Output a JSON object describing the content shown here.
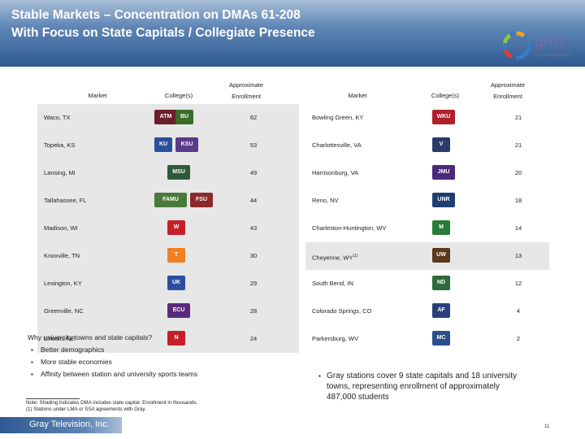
{
  "header": {
    "title_line1": "Stable Markets – Concentration on DMAs 61-208",
    "title_line2": "With Focus on State Capitals / Collegiate Presence"
  },
  "logo": {
    "text": "gray",
    "tagline": "Gray Television, Inc."
  },
  "table": {
    "headers": {
      "market": "Market",
      "colleges": "College(s)",
      "enrollment_line1": "Approximate",
      "enrollment_line2": "Enrollment"
    },
    "left_rows": [
      {
        "market": "Waco, TX",
        "enrollment": "62",
        "mascots": [
          {
            "label": "ATM",
            "color": "#6b1f2a"
          },
          {
            "label": "BU",
            "color": "#3b6b2a"
          }
        ]
      },
      {
        "market": "Topeka, KS",
        "enrollment": "53",
        "mascots": [
          {
            "label": "KU",
            "color": "#2a4f9a"
          },
          {
            "label": "KSU",
            "color": "#5a3a8a"
          }
        ]
      },
      {
        "market": "Lansing, MI",
        "enrollment": "49",
        "mascots": [
          {
            "label": "MSU",
            "color": "#2f5a3a"
          }
        ]
      },
      {
        "market": "Tallahassee, FL",
        "enrollment": "44",
        "mascots": [
          {
            "label": "FAMU",
            "color": "#4a7a3a"
          },
          {
            "label": "FSU",
            "color": "#8a2a2a"
          }
        ]
      },
      {
        "market": "Madison, WI",
        "enrollment": "43",
        "mascots": [
          {
            "label": "W",
            "color": "#c5202a"
          }
        ]
      },
      {
        "market": "Knoxville, TN",
        "enrollment": "30",
        "mascots": [
          {
            "label": "T",
            "color": "#f08020"
          }
        ]
      },
      {
        "market": "Lexington, KY",
        "enrollment": "29",
        "mascots": [
          {
            "label": "UK",
            "color": "#2a4fa0"
          }
        ]
      },
      {
        "market": "Greenville, NC",
        "enrollment": "28",
        "mascots": [
          {
            "label": "ECU",
            "color": "#5a2a7a"
          }
        ]
      },
      {
        "market": "Lincoln, NE",
        "enrollment": "24",
        "mascots": [
          {
            "label": "N",
            "color": "#c5202a"
          }
        ]
      }
    ],
    "right_rows": [
      {
        "market": "Bowling Green, KY",
        "enrollment": "21",
        "mascots": [
          {
            "label": "WKU",
            "color": "#b0202a"
          }
        ]
      },
      {
        "market": "Charlottesville, VA",
        "enrollment": "21",
        "mascots": [
          {
            "label": "V",
            "color": "#2a3a6a"
          }
        ]
      },
      {
        "market": "Harrisonburg, VA",
        "enrollment": "20",
        "mascots": [
          {
            "label": "JMU",
            "color": "#4a2a7a"
          }
        ]
      },
      {
        "market": "Reno, NV",
        "enrollment": "18",
        "mascots": [
          {
            "label": "UNR",
            "color": "#1f3f6f"
          }
        ]
      },
      {
        "market": "Charleston-Huntington, WV",
        "enrollment": "14",
        "mascots": [
          {
            "label": "M",
            "color": "#2a7a3a"
          }
        ]
      },
      {
        "market": "Cheyenne, WY",
        "market_sup": "(1)",
        "enrollment": "13",
        "mascots": [
          {
            "label": "UW",
            "color": "#5a3a1a"
          }
        ]
      },
      {
        "market": "South Bend, IN",
        "enrollment": "12",
        "mascots": [
          {
            "label": "ND",
            "color": "#2f6a3a"
          }
        ]
      },
      {
        "market": "Colorado Springs, CO",
        "enrollment": "4",
        "mascots": [
          {
            "label": "AF",
            "color": "#2a3f7a"
          }
        ]
      },
      {
        "market": "Parkersburg, WV",
        "enrollment": "2",
        "mascots": [
          {
            "label": "MC",
            "color": "#2a4f8a"
          }
        ]
      }
    ]
  },
  "why": {
    "heading": "Why university towns and state capitals?",
    "bullets": [
      "Better demographics",
      "More stable economies",
      "Affinity between station and university sports teams"
    ]
  },
  "callout": "Gray stations cover 9 state capitals and 18 university towns, representing enrollment of approximately 487,000 students",
  "notes": {
    "line1": "Note: Shading indicates DMA includes state capital. Enrollment in thousands.",
    "line2": "(1) Stations under LMA or SSA agreements with Gray."
  },
  "footer": {
    "company": "Gray Television, Inc.",
    "page": "11"
  }
}
